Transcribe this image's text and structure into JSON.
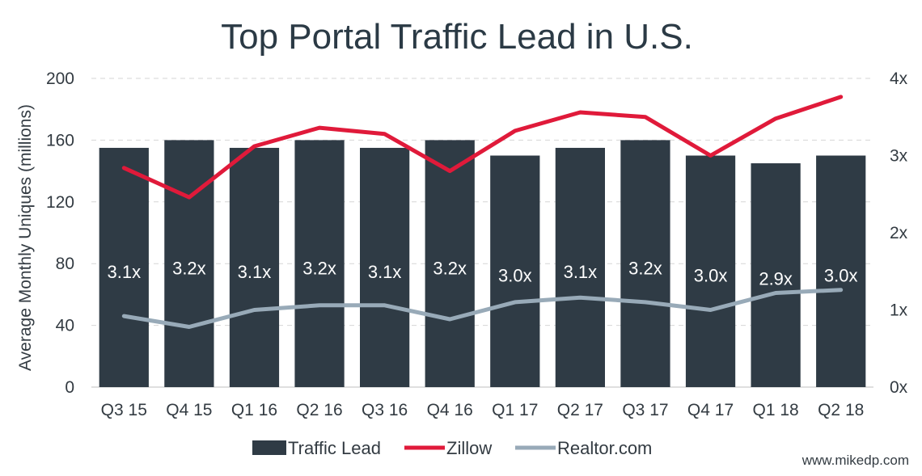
{
  "chart_data": {
    "type": "bar",
    "title": "Top Portal Traffic Lead in U.S.",
    "ylabel": "Average Monthly Uniques (millions)",
    "ylim": [
      0,
      200
    ],
    "y_ticks": [
      "0",
      "40",
      "80",
      "120",
      "160",
      "200"
    ],
    "y2lim": [
      0,
      4
    ],
    "y2_ticks": [
      "0x",
      "1x",
      "2x",
      "3x",
      "4x"
    ],
    "categories": [
      "Q3 15",
      "Q4 15",
      "Q1 16",
      "Q2 16",
      "Q3 16",
      "Q4 16",
      "Q1 17",
      "Q2 17",
      "Q3 17",
      "Q4 17",
      "Q1 18",
      "Q2 18"
    ],
    "series": [
      {
        "name": "Traffic Lead",
        "type": "bar",
        "axis": "right",
        "color": "#2f3b45",
        "values": [
          3.1,
          3.2,
          3.1,
          3.2,
          3.1,
          3.2,
          3.0,
          3.1,
          3.2,
          3.0,
          2.9,
          3.0
        ]
      },
      {
        "name": "Zillow",
        "type": "line",
        "axis": "left",
        "color": "#e01a3a",
        "values": [
          142,
          123,
          156,
          168,
          164,
          140,
          166,
          178,
          175,
          150,
          174,
          188
        ]
      },
      {
        "name": "Realtor.com",
        "type": "line",
        "axis": "left",
        "color": "#98aab8",
        "values": [
          46,
          39,
          50,
          53,
          53,
          44,
          55,
          58,
          55,
          50,
          61,
          63
        ]
      }
    ],
    "data_labels": [
      "3.1x",
      "3.2x",
      "3.1x",
      "3.2x",
      "3.1x",
      "3.2x",
      "3.0x",
      "3.1x",
      "3.2x",
      "3.0x",
      "2.9x",
      "3.0x"
    ],
    "legend_position": "bottom",
    "gridlines": true
  },
  "watermark": "www.mikedp.com"
}
